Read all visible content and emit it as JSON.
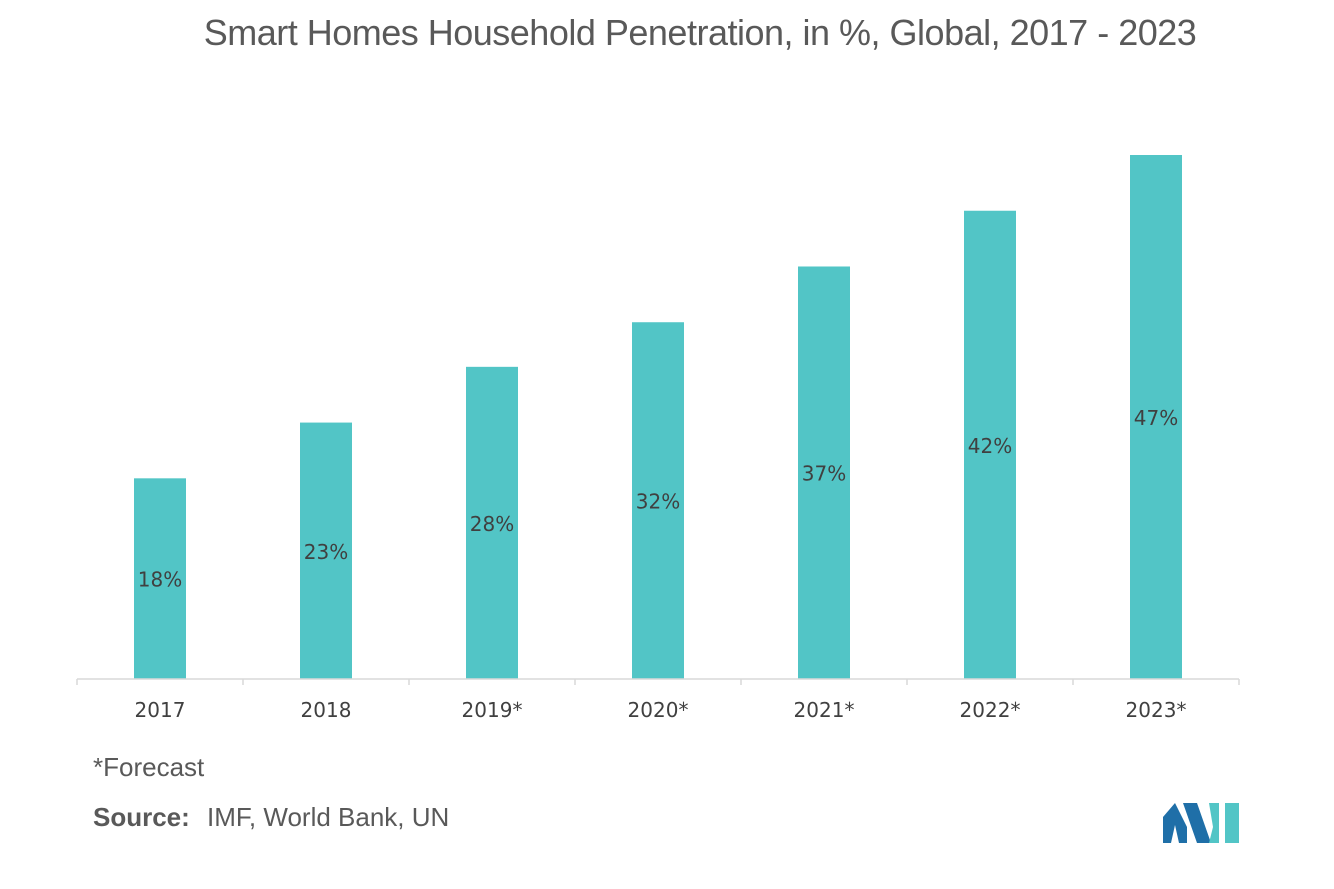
{
  "chart_data": {
    "type": "bar",
    "title": "Smart Homes Household Penetration, in %, Global, 2017 - 2023",
    "categories": [
      "2017",
      "2018",
      "2019*",
      "2020*",
      "2021*",
      "2022*",
      "2023*"
    ],
    "values": [
      18,
      23,
      28,
      32,
      37,
      42,
      47
    ],
    "data_labels": [
      "18%",
      "23%",
      "28%",
      "32%",
      "37%",
      "42%",
      "47%"
    ],
    "unit": "%",
    "xlabel": "",
    "ylabel": "",
    "ylim": [
      0,
      47
    ],
    "grid": false,
    "legend": "none",
    "bar_color": "#52C5C6"
  },
  "footnote": "*Forecast",
  "source": {
    "label": "Source:",
    "text": "IMF, World Bank, UN"
  },
  "colors": {
    "bar": "#52C5C6",
    "text": "#595959",
    "axis": "#d9d9d9",
    "logo_dark": "#1F6FA8",
    "logo_light": "#52C5C6"
  }
}
